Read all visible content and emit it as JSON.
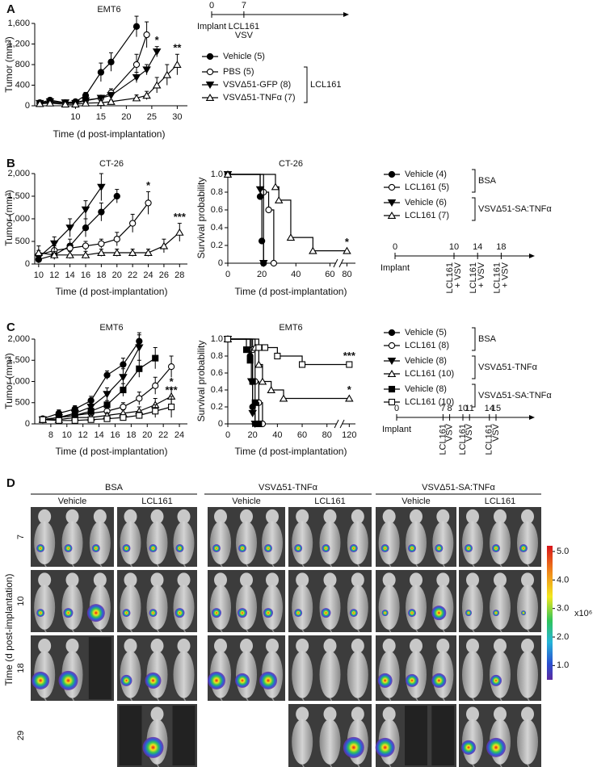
{
  "panel_labels": [
    "A",
    "B",
    "C",
    "D"
  ],
  "chart_data": [
    {
      "type": "line",
      "title": "EMT6",
      "xlabel": "Time (d post-implantation)",
      "ylabel": "Tumor (mm³)",
      "xlim": [
        2,
        32
      ],
      "ylim": [
        0,
        1600
      ],
      "xticks": [
        10,
        15,
        20,
        25,
        30
      ],
      "yticks": [
        0,
        400,
        800,
        {
          "value": 1200,
          "label": "1,200"
        },
        {
          "value": 1600,
          "label": "1,600"
        }
      ],
      "series": [
        {
          "name": "Vehicle (5)",
          "color": "#000000",
          "marker": "circle",
          "filled": true,
          "x": [
            3,
            5,
            8,
            10,
            12,
            15,
            17,
            22
          ],
          "values": [
            60,
            110,
            60,
            80,
            200,
            650,
            850,
            1540
          ],
          "errors": [
            20,
            30,
            20,
            30,
            60,
            180,
            180,
            200
          ]
        },
        {
          "name": "PBS (5)",
          "color": "#000000",
          "marker": "circle",
          "filled": false,
          "group": "LCL161",
          "x": [
            3,
            5,
            8,
            10,
            12,
            15,
            17,
            22,
            24
          ],
          "values": [
            40,
            70,
            50,
            60,
            110,
            150,
            250,
            800,
            1380
          ],
          "errors": [
            15,
            20,
            15,
            20,
            40,
            50,
            80,
            200,
            250
          ]
        },
        {
          "name": "VSVΔ51-GFP (8)",
          "color": "#000000",
          "marker": "triangle-down",
          "filled": true,
          "group": "LCL161",
          "annotation": "*",
          "x": [
            3,
            5,
            8,
            10,
            12,
            15,
            17,
            22,
            24,
            26
          ],
          "values": [
            50,
            80,
            60,
            50,
            100,
            150,
            200,
            550,
            700,
            1050
          ],
          "errors": [
            15,
            20,
            20,
            15,
            30,
            50,
            60,
            100,
            100,
            100
          ]
        },
        {
          "name": "VSVΔ51-TNFα (7)",
          "color": "#000000",
          "marker": "triangle-up",
          "filled": false,
          "group": "LCL161",
          "annotation": "**",
          "x": [
            3,
            5,
            8,
            10,
            12,
            15,
            17,
            22,
            24,
            26,
            28,
            30
          ],
          "values": [
            40,
            50,
            30,
            30,
            50,
            60,
            80,
            150,
            200,
            400,
            600,
            800
          ],
          "errors": [
            10,
            15,
            10,
            10,
            20,
            20,
            30,
            60,
            80,
            150,
            200,
            200
          ]
        }
      ]
    },
    {
      "type": "line",
      "title": "CT-26",
      "xlabel": "Time (d post-implantation)",
      "ylabel": "Tumor (mm³)",
      "xlim": [
        9.5,
        29
      ],
      "ylim": [
        0,
        2000
      ],
      "xticks": [
        10,
        12,
        14,
        16,
        18,
        20,
        22,
        24,
        26,
        28
      ],
      "yticks": [
        0,
        500,
        {
          "value": 1000,
          "label": "1,000"
        },
        {
          "value": 1500,
          "label": "1,500"
        },
        {
          "value": 2000,
          "label": "2,000"
        }
      ],
      "series": [
        {
          "name": "Vehicle (4)",
          "color": "#000000",
          "marker": "circle",
          "filled": true,
          "group": "BSA",
          "x": [
            10,
            12,
            14,
            16,
            18,
            20
          ],
          "values": [
            100,
            200,
            400,
            800,
            1150,
            1500
          ],
          "errors": [
            80,
            100,
            150,
            200,
            200,
            150
          ]
        },
        {
          "name": "LCL161 (5)",
          "color": "#000000",
          "marker": "circle",
          "filled": false,
          "group": "BSA",
          "annotation": "*",
          "x": [
            10,
            12,
            14,
            16,
            18,
            20,
            22,
            24
          ],
          "values": [
            200,
            300,
            350,
            400,
            450,
            550,
            900,
            1350
          ],
          "errors": [
            100,
            100,
            100,
            100,
            100,
            150,
            200,
            250
          ]
        },
        {
          "name": "Vehicle (6)",
          "color": "#000000",
          "marker": "triangle-down",
          "filled": true,
          "group": "VSVΔ51-SA:TNFα",
          "x": [
            10,
            12,
            14,
            16,
            18
          ],
          "values": [
            150,
            450,
            800,
            1200,
            1700
          ],
          "errors": [
            100,
            150,
            200,
            200,
            300
          ]
        },
        {
          "name": "LCL161 (7)",
          "color": "#000000",
          "marker": "triangle-up",
          "filled": false,
          "group": "VSVΔ51-SA:TNFα",
          "annotation": "***",
          "x": [
            10,
            12,
            14,
            16,
            18,
            20,
            22,
            24,
            26,
            28
          ],
          "values": [
            250,
            200,
            200,
            200,
            250,
            250,
            250,
            250,
            400,
            700
          ],
          "errors": [
            150,
            80,
            80,
            80,
            80,
            80,
            80,
            80,
            150,
            200
          ]
        }
      ]
    },
    {
      "type": "step",
      "title": "CT-26",
      "xlabel": "Time (d post-implantation)",
      "ylabel": "Survival probability",
      "xlim": [
        0,
        85
      ],
      "xbreak": [
        65,
        75
      ],
      "ylim": [
        0,
        1
      ],
      "xticks": [
        0,
        20,
        40,
        60,
        80
      ],
      "yticks": [
        0,
        0.2,
        0.4,
        0.6,
        0.8,
        {
          "value": 1,
          "label": "1.0"
        }
      ],
      "series": [
        {
          "color": "#000000",
          "marker": "circle",
          "filled": true,
          "x": [
            0,
            19,
            20,
            21
          ],
          "values": [
            1,
            0.75,
            0.25,
            0
          ]
        },
        {
          "color": "#000000",
          "marker": "circle",
          "filled": false,
          "x": [
            0,
            21,
            24,
            27
          ],
          "values": [
            1,
            0.8,
            0.6,
            0
          ]
        },
        {
          "color": "#000000",
          "marker": "triangle-down",
          "filled": true,
          "x": [
            0,
            19,
            21
          ],
          "values": [
            1,
            0.83,
            0
          ]
        },
        {
          "color": "#000000",
          "marker": "triangle-up",
          "filled": false,
          "annotation": "*",
          "x": [
            0,
            28,
            30,
            37,
            50,
            80
          ],
          "values": [
            1,
            0.86,
            0.71,
            0.29,
            0.14,
            0.14
          ]
        }
      ]
    },
    {
      "type": "line",
      "title": "EMT6",
      "xlabel": "Time (d post-implantation)",
      "ylabel": "Tumor (mm³)",
      "xlim": [
        6,
        25
      ],
      "ylim": [
        0,
        2000
      ],
      "xticks": [
        8,
        10,
        12,
        14,
        16,
        18,
        20,
        22,
        24
      ],
      "yticks": [
        0,
        500,
        {
          "value": 1000,
          "label": "1,000"
        },
        {
          "value": 1500,
          "label": "1,500"
        },
        {
          "value": 2000,
          "label": "2,000"
        }
      ],
      "series": [
        {
          "name": "Vehicle (5)",
          "color": "#000000",
          "marker": "circle",
          "filled": true,
          "group": "BSA",
          "x": [
            7,
            9,
            11,
            13,
            15,
            17,
            19
          ],
          "values": [
            120,
            250,
            350,
            550,
            1150,
            1400,
            1950
          ],
          "errors": [
            50,
            80,
            80,
            100,
            100,
            150,
            200
          ]
        },
        {
          "name": "LCL161 (8)",
          "color": "#000000",
          "marker": "circle",
          "filled": false,
          "group": "BSA",
          "x": [
            7,
            9,
            11,
            13,
            15,
            17,
            19,
            21,
            23
          ],
          "values": [
            100,
            150,
            200,
            250,
            300,
            400,
            600,
            900,
            1350
          ],
          "errors": [
            50,
            50,
            60,
            80,
            80,
            100,
            150,
            200,
            250
          ]
        },
        {
          "name": "Vehicle (8)",
          "color": "#000000",
          "marker": "triangle-down",
          "filled": true,
          "group": "VSVΔ51-TNFα",
          "x": [
            7,
            9,
            11,
            13,
            15,
            17,
            19
          ],
          "values": [
            100,
            150,
            250,
            400,
            700,
            1100,
            1800
          ],
          "errors": [
            50,
            60,
            80,
            100,
            150,
            200,
            300
          ]
        },
        {
          "name": "LCL161 (10)",
          "color": "#000000",
          "marker": "triangle-up",
          "filled": false,
          "group": "VSVΔ51-TNFα",
          "annotation": "*",
          "x": [
            7,
            9,
            11,
            13,
            15,
            17,
            19,
            21,
            23
          ],
          "values": [
            100,
            100,
            150,
            150,
            200,
            250,
            300,
            450,
            650
          ],
          "errors": [
            40,
            40,
            50,
            60,
            60,
            80,
            100,
            150,
            200
          ]
        },
        {
          "name": "Vehicle (8)",
          "color": "#000000",
          "marker": "square",
          "filled": true,
          "group": "VSVΔ51-SA:TNFα",
          "x": [
            7,
            9,
            11,
            13,
            15,
            17,
            19,
            21
          ],
          "values": [
            100,
            150,
            200,
            300,
            450,
            800,
            1300,
            1550
          ],
          "errors": [
            50,
            50,
            60,
            80,
            100,
            150,
            200,
            250
          ]
        },
        {
          "name": "LCL161 (10)",
          "color": "#000000",
          "marker": "square",
          "filled": false,
          "group": "VSVΔ51-SA:TNFα",
          "annotation": "***",
          "x": [
            7,
            9,
            11,
            13,
            15,
            17,
            19,
            21,
            23
          ],
          "values": [
            100,
            80,
            80,
            100,
            120,
            150,
            200,
            300,
            400
          ],
          "errors": [
            40,
            30,
            30,
            40,
            50,
            60,
            80,
            150,
            250
          ]
        }
      ]
    },
    {
      "type": "step",
      "title": "EMT6",
      "xlabel": "Time (d post-implantation)",
      "ylabel": "Survival probability",
      "xlim": [
        0,
        125
      ],
      "xbreak": [
        90,
        112
      ],
      "ylim": [
        0,
        1
      ],
      "xticks": [
        0,
        20,
        40,
        60,
        80,
        120
      ],
      "yticks": [
        0,
        0.2,
        0.4,
        0.6,
        0.8,
        {
          "value": 1,
          "label": "1.0"
        }
      ],
      "series": [
        {
          "color": "#000000",
          "marker": "circle",
          "filled": true,
          "x": [
            0,
            18,
            20,
            22
          ],
          "values": [
            1,
            0.8,
            0.2,
            0
          ]
        },
        {
          "color": "#000000",
          "marker": "circle",
          "filled": false,
          "x": [
            0,
            20,
            22,
            25,
            28
          ],
          "values": [
            1,
            0.875,
            0.5,
            0.25,
            0
          ]
        },
        {
          "color": "#000000",
          "marker": "triangle-down",
          "filled": true,
          "x": [
            0,
            19,
            20,
            22
          ],
          "values": [
            1,
            0.5,
            0.125,
            0
          ]
        },
        {
          "color": "#000000",
          "marker": "triangle-up",
          "filled": false,
          "annotation": "*",
          "x": [
            0,
            22,
            25,
            28,
            35,
            45,
            120
          ],
          "values": [
            1,
            0.9,
            0.7,
            0.5,
            0.4,
            0.3,
            0.3
          ]
        },
        {
          "color": "#000000",
          "marker": "square",
          "filled": true,
          "x": [
            0,
            15,
            18,
            20,
            22,
            25
          ],
          "values": [
            1,
            0.875,
            0.75,
            0.5,
            0.25,
            0
          ]
        },
        {
          "color": "#000000",
          "marker": "square",
          "filled": false,
          "annotation": "***",
          "x": [
            0,
            25,
            30,
            40,
            60,
            120
          ],
          "values": [
            1,
            0.9,
            0.9,
            0.8,
            0.7,
            0.7
          ]
        }
      ]
    }
  ],
  "timelines": [
    {
      "ticks": [
        0,
        7
      ],
      "labels": [
        [
          "Implant"
        ],
        [
          "LCL161",
          "VSV"
        ]
      ],
      "rotated_labels": false
    },
    {
      "ticks": [
        0,
        10,
        14,
        18
      ],
      "labels": [
        [
          "Implant"
        ],
        [
          "LCL161",
          "+ VSV"
        ],
        [
          "LCL161",
          "+ VSV"
        ],
        [
          "LCL161",
          "+ VSV"
        ]
      ],
      "rotated_labels": true
    },
    {
      "ticks": [
        0,
        7,
        8,
        10,
        11,
        14,
        15
      ],
      "labels": [
        [
          "Implant"
        ],
        [
          "LCL161"
        ],
        [
          "VSV"
        ],
        [
          "LCL161"
        ],
        [
          "VSV"
        ],
        [
          "LCL161"
        ],
        [
          "VSV"
        ]
      ],
      "rotated_labels": true
    }
  ],
  "imaging": {
    "groups": [
      "BSA",
      "VSVΔ51-TNFα",
      "VSVΔ51-SA:TNFα"
    ],
    "subgroups": [
      "Vehicle",
      "LCL161",
      "Vehicle",
      "LCL161",
      "Vehicle",
      "LCL161"
    ],
    "rows": [
      7,
      10,
      18,
      29
    ],
    "ylabel": "Time (d post-implantation)",
    "colorbar": {
      "lim": [
        0.5,
        5.2
      ],
      "ticks": [
        {
          "value": 1,
          "label": "1.0"
        },
        {
          "value": 2,
          "label": "2.0"
        },
        {
          "value": 3,
          "label": "3.0"
        },
        {
          "value": 4,
          "label": "4.0"
        },
        {
          "value": 5,
          "label": "5.0"
        }
      ],
      "scale_label": "x10⁶"
    }
  }
}
